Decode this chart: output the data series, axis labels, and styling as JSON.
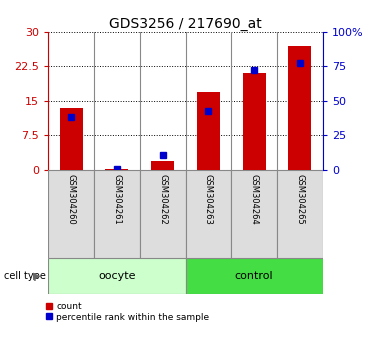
{
  "title": "GDS3256 / 217690_at",
  "samples": [
    "GSM304260",
    "GSM304261",
    "GSM304262",
    "GSM304263",
    "GSM304264",
    "GSM304265"
  ],
  "count_values": [
    13.5,
    0.1,
    2.0,
    17.0,
    21.0,
    27.0
  ],
  "percentile_values": [
    11.5,
    0.3,
    3.3,
    12.7,
    21.7,
    23.3
  ],
  "left_yticks": [
    0,
    7.5,
    15,
    22.5,
    30
  ],
  "left_ylabels": [
    "0",
    "7.5",
    "15",
    "22.5",
    "30"
  ],
  "right_yticks": [
    0,
    25,
    50,
    75,
    100
  ],
  "right_ylabels": [
    "0",
    "25",
    "50",
    "75",
    "100%"
  ],
  "ylim": [
    0,
    30
  ],
  "bar_color": "#cc0000",
  "marker_color": "#0000cc",
  "oocyte_samples": [
    0,
    1,
    2
  ],
  "control_samples": [
    3,
    4,
    5
  ],
  "oocyte_label": "oocyte",
  "control_label": "control",
  "oocyte_color": "#ccffcc",
  "control_color": "#44dd44",
  "cell_type_label": "cell type",
  "legend_count": "count",
  "legend_percentile": "percentile rank within the sample",
  "bar_color_hex": "#cc0000",
  "marker_color_hex": "#0000cc",
  "tick_color_left": "#cc0000",
  "tick_color_right": "#0000cc",
  "bg_color": "#dddddd",
  "bar_width": 0.5
}
